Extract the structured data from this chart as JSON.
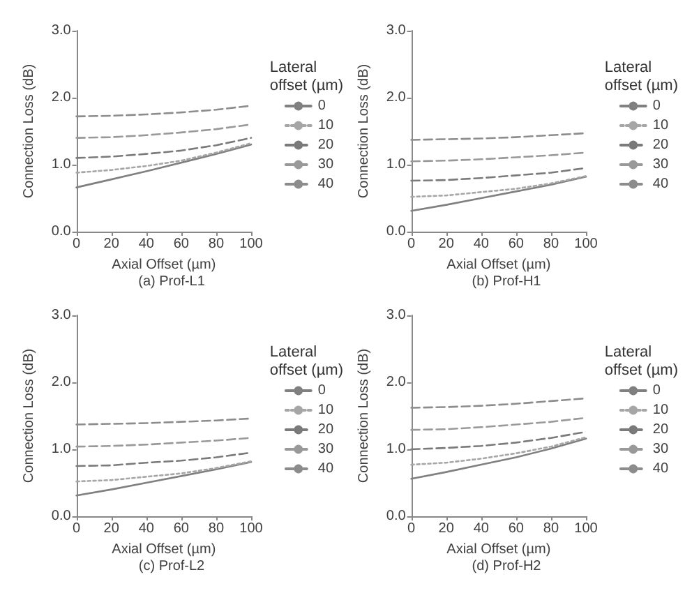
{
  "chart_data": [
    {
      "type": "line",
      "title": "(a) Prof-L1",
      "xlabel": "Axial Offset (µm)",
      "ylabel": "Connection Loss (dB)",
      "legend_title": "Lateral offset (µm)",
      "legend": "right",
      "grid": false,
      "marker": "none",
      "x": [
        0,
        20,
        40,
        60,
        80,
        100
      ],
      "xlim": [
        0,
        100
      ],
      "xticks": [
        0,
        20,
        40,
        60,
        80,
        100
      ],
      "ylim": [
        0,
        3
      ],
      "yticks": [
        {
          "value": 0,
          "label": "0.0"
        },
        {
          "value": 1,
          "label": "1.0"
        },
        {
          "value": 2,
          "label": "2.0"
        },
        {
          "value": 3,
          "label": "3.0"
        }
      ],
      "series": [
        {
          "name": "0",
          "color": "#808080",
          "line_style": "solid",
          "values": [
            0.66,
            0.78,
            0.9,
            1.03,
            1.16,
            1.3
          ]
        },
        {
          "name": "10",
          "color": "#a6a6a6",
          "line_style": "dotted",
          "values": [
            0.88,
            0.92,
            0.98,
            1.06,
            1.18,
            1.32
          ]
        },
        {
          "name": "20",
          "color": "#7a7a7a",
          "line_style": "dashed",
          "values": [
            1.1,
            1.12,
            1.16,
            1.21,
            1.29,
            1.4
          ]
        },
        {
          "name": "30",
          "color": "#999999",
          "line_style": "dashed",
          "values": [
            1.4,
            1.41,
            1.44,
            1.48,
            1.53,
            1.6
          ]
        },
        {
          "name": "40",
          "color": "#8c8c8c",
          "line_style": "dashed",
          "values": [
            1.72,
            1.73,
            1.75,
            1.78,
            1.82,
            1.88
          ]
        }
      ]
    },
    {
      "type": "line",
      "title": "(b) Prof-H1",
      "xlabel": "Axial Offset (µm)",
      "ylabel": "Connection Loss (dB)",
      "legend_title": "Lateral offset (µm)",
      "legend": "right",
      "grid": false,
      "marker": "none",
      "x": [
        0,
        20,
        40,
        60,
        80,
        100
      ],
      "xlim": [
        0,
        100
      ],
      "xticks": [
        0,
        20,
        40,
        60,
        80,
        100
      ],
      "ylim": [
        0,
        3
      ],
      "yticks": [
        {
          "value": 0,
          "label": "0.0"
        },
        {
          "value": 1,
          "label": "1.0"
        },
        {
          "value": 2,
          "label": "2.0"
        },
        {
          "value": 3,
          "label": "3.0"
        }
      ],
      "series": [
        {
          "name": "0",
          "color": "#808080",
          "line_style": "solid",
          "values": [
            0.31,
            0.4,
            0.5,
            0.6,
            0.7,
            0.82
          ]
        },
        {
          "name": "10",
          "color": "#a6a6a6",
          "line_style": "dotted",
          "values": [
            0.52,
            0.54,
            0.59,
            0.64,
            0.72,
            0.83
          ]
        },
        {
          "name": "20",
          "color": "#7a7a7a",
          "line_style": "dashed",
          "values": [
            0.76,
            0.77,
            0.8,
            0.84,
            0.88,
            0.95
          ]
        },
        {
          "name": "30",
          "color": "#999999",
          "line_style": "dashed",
          "values": [
            1.05,
            1.06,
            1.08,
            1.11,
            1.14,
            1.18
          ]
        },
        {
          "name": "40",
          "color": "#8c8c8c",
          "line_style": "dashed",
          "values": [
            1.37,
            1.38,
            1.39,
            1.41,
            1.44,
            1.47
          ]
        }
      ]
    },
    {
      "type": "line",
      "title": "(c) Prof-L2",
      "xlabel": "Axial Offset (µm)",
      "ylabel": "Connection Loss (dB)",
      "legend_title": "Lateral offset (µm)",
      "legend": "right",
      "grid": false,
      "marker": "none",
      "x": [
        0,
        20,
        40,
        60,
        80,
        100
      ],
      "xlim": [
        0,
        100
      ],
      "xticks": [
        0,
        20,
        40,
        60,
        80,
        100
      ],
      "ylim": [
        0,
        3
      ],
      "yticks": [
        {
          "value": 0,
          "label": "0.0"
        },
        {
          "value": 1,
          "label": "1.0"
        },
        {
          "value": 2,
          "label": "2.0"
        },
        {
          "value": 3,
          "label": "3.0"
        }
      ],
      "series": [
        {
          "name": "0",
          "color": "#808080",
          "line_style": "solid",
          "values": [
            0.31,
            0.4,
            0.5,
            0.6,
            0.7,
            0.81
          ]
        },
        {
          "name": "10",
          "color": "#a6a6a6",
          "line_style": "dotted",
          "values": [
            0.52,
            0.54,
            0.59,
            0.64,
            0.72,
            0.82
          ]
        },
        {
          "name": "20",
          "color": "#7a7a7a",
          "line_style": "dashed",
          "values": [
            0.75,
            0.76,
            0.8,
            0.83,
            0.88,
            0.95
          ]
        },
        {
          "name": "30",
          "color": "#999999",
          "line_style": "dashed",
          "values": [
            1.04,
            1.05,
            1.07,
            1.1,
            1.13,
            1.17
          ]
        },
        {
          "name": "40",
          "color": "#8c8c8c",
          "line_style": "dashed",
          "values": [
            1.37,
            1.38,
            1.39,
            1.41,
            1.43,
            1.46
          ]
        }
      ]
    },
    {
      "type": "line",
      "title": "(d) Prof-H2",
      "xlabel": "Axial Offset (µm)",
      "ylabel": "Connection Loss (dB)",
      "legend_title": "Lateral offset (µm)",
      "legend": "right",
      "grid": false,
      "marker": "none",
      "x": [
        0,
        20,
        40,
        60,
        80,
        100
      ],
      "xlim": [
        0,
        100
      ],
      "xticks": [
        0,
        20,
        40,
        60,
        80,
        100
      ],
      "ylim": [
        0,
        3
      ],
      "yticks": [
        {
          "value": 0,
          "label": "0.0"
        },
        {
          "value": 1,
          "label": "1.0"
        },
        {
          "value": 2,
          "label": "2.0"
        },
        {
          "value": 3,
          "label": "3.0"
        }
      ],
      "series": [
        {
          "name": "0",
          "color": "#808080",
          "line_style": "solid",
          "values": [
            0.56,
            0.66,
            0.77,
            0.88,
            1.01,
            1.16
          ]
        },
        {
          "name": "10",
          "color": "#a6a6a6",
          "line_style": "dotted",
          "values": [
            0.77,
            0.8,
            0.86,
            0.94,
            1.04,
            1.18
          ]
        },
        {
          "name": "20",
          "color": "#7a7a7a",
          "line_style": "dashed",
          "values": [
            1.0,
            1.02,
            1.05,
            1.1,
            1.17,
            1.26
          ]
        },
        {
          "name": "30",
          "color": "#999999",
          "line_style": "dashed",
          "values": [
            1.29,
            1.3,
            1.33,
            1.37,
            1.41,
            1.47
          ]
        },
        {
          "name": "40",
          "color": "#8c8c8c",
          "line_style": "dashed",
          "values": [
            1.62,
            1.63,
            1.65,
            1.68,
            1.72,
            1.76
          ]
        }
      ]
    }
  ]
}
